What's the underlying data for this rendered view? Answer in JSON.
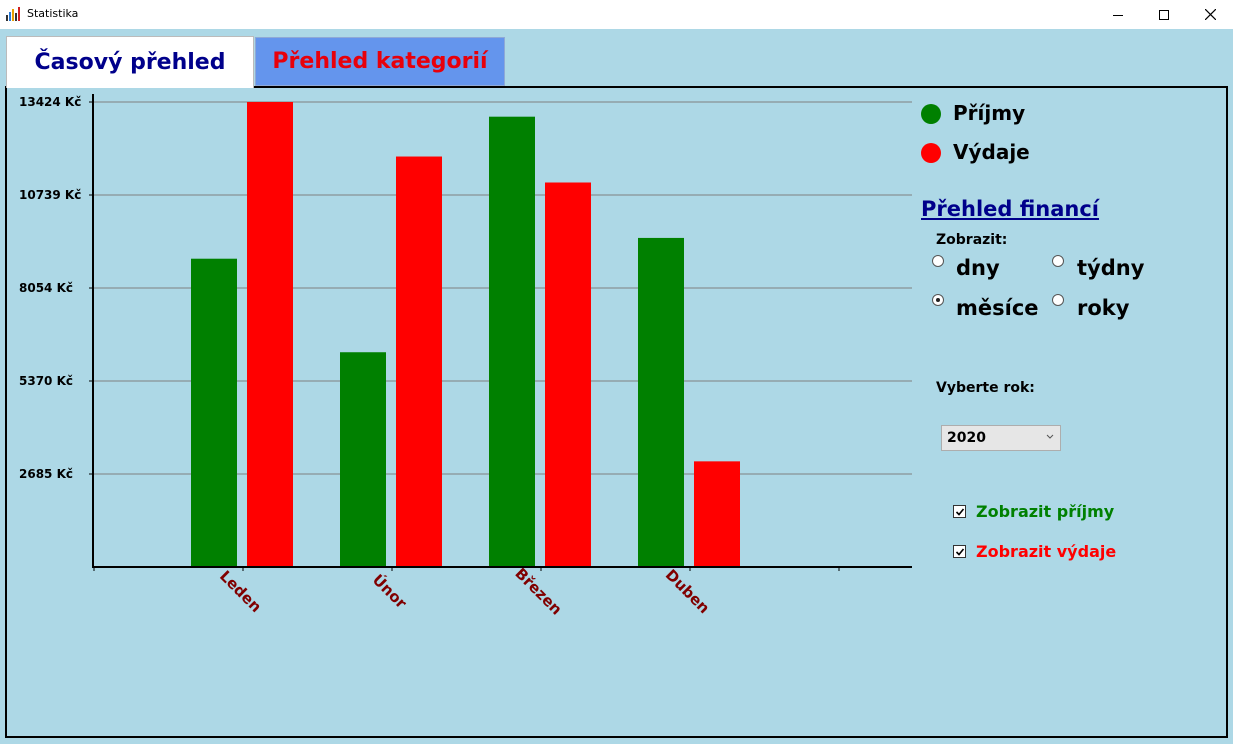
{
  "window": {
    "title": "Statistika",
    "controls": [
      "minimize",
      "maximize",
      "close"
    ]
  },
  "tabs": [
    {
      "label": "Časový přehled",
      "active": true,
      "color": "#00008b"
    },
    {
      "label": "Přehled kategorií",
      "active": false,
      "color": "#e8000b"
    }
  ],
  "legend": [
    {
      "label": "Příjmy",
      "color": "#008000"
    },
    {
      "label": "Výdaje",
      "color": "#ff0000"
    }
  ],
  "sidebar": {
    "title": "Přehled financí",
    "show_label": "Zobrazit:",
    "options": [
      {
        "label": "dny",
        "checked": false
      },
      {
        "label": "týdny",
        "checked": false
      },
      {
        "label": "měsíce",
        "checked": true
      },
      {
        "label": "roky",
        "checked": false
      }
    ],
    "year_label": "Vyberte rok:",
    "year_value": "2020",
    "checkboxes": [
      {
        "label": "Zobrazit příjmy",
        "checked": true,
        "color": "#008000"
      },
      {
        "label": "Zobrazit výdaje",
        "checked": true,
        "color": "#ff0000"
      }
    ]
  },
  "chart_data": {
    "type": "bar",
    "categories": [
      "Leden",
      "Únor",
      "Březen",
      "Duben"
    ],
    "series": [
      {
        "name": "Příjmy",
        "color": "#008000",
        "values": [
          8900,
          6200,
          13000,
          9500
        ]
      },
      {
        "name": "Výdaje",
        "color": "#ff0000",
        "values": [
          13424,
          11850,
          11100,
          3050
        ]
      }
    ],
    "y_ticks": [
      {
        "value": 2685,
        "label": "2685 Kč"
      },
      {
        "value": 5370,
        "label": "5370 Kč"
      },
      {
        "value": 8054,
        "label": "8054 Kč"
      },
      {
        "value": 10739,
        "label": "10739 Kč"
      },
      {
        "value": 13424,
        "label": "13424 Kč"
      }
    ],
    "ylim": [
      0,
      13424
    ],
    "grid": true,
    "category_label_color": "#800000",
    "legend_position": "right"
  }
}
